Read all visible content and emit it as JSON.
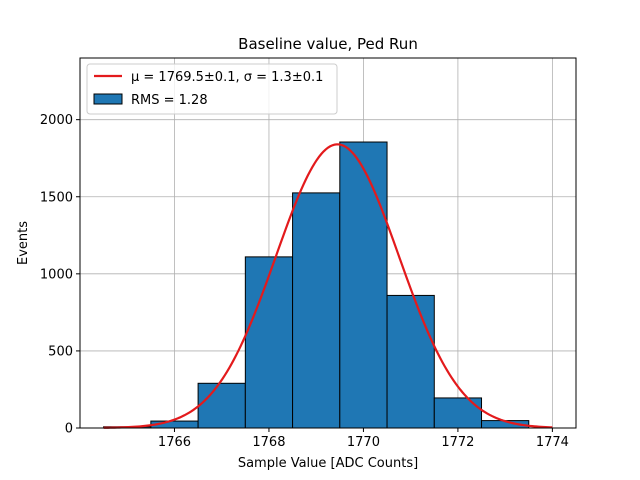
{
  "chart_data": {
    "type": "bar",
    "title": "Baseline value, Ped Run",
    "xlabel": "Sample Value [ADC Counts]",
    "ylabel": "Events",
    "xlim": [
      1764.0,
      1774.5
    ],
    "ylim": [
      0,
      2400
    ],
    "xticks": [
      1766,
      1768,
      1770,
      1772,
      1774
    ],
    "yticks": [
      0,
      500,
      1000,
      1500,
      2000
    ],
    "grid": true,
    "legend_position": "top-left",
    "histogram": {
      "label": "RMS = 1.28",
      "bin_edges": [
        1764.5,
        1765.5,
        1766.5,
        1767.5,
        1768.5,
        1769.5,
        1770.5,
        1771.5,
        1772.5,
        1773.5
      ],
      "counts": [
        8,
        45,
        290,
        1110,
        1525,
        1855,
        860,
        195,
        48
      ],
      "color": "#1f77b4"
    },
    "fit": {
      "label": "μ = 1769.5±0.1, σ = 1.3±0.1",
      "mu": 1769.45,
      "sigma": 1.3,
      "amplitude": 1840,
      "x_range": [
        1764.5,
        1774.0
      ],
      "color": "#e31a1c"
    }
  }
}
